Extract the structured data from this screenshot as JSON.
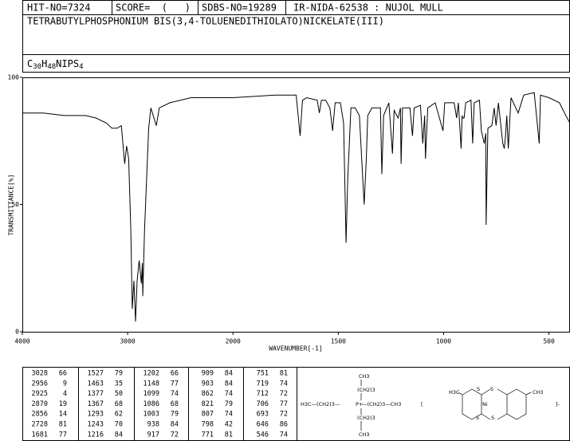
{
  "header": {
    "hit_no": "HIT-NO=7324",
    "score": "SCORE=  (   )",
    "sdbs_no": "SDBS-NO=19289",
    "ir_no": "IR-NIDA-62538 : NUJOL MULL",
    "compound": "TETRABUTYLPHOSPHONIUM BIS(3,4-TOLUENEDITHIOLATO)NICKELATE(III)",
    "formula": [
      {
        "text": "C",
        "sub": false
      },
      {
        "text": "30",
        "sub": true
      },
      {
        "text": "H",
        "sub": false
      },
      {
        "text": "48",
        "sub": true
      },
      {
        "text": "NIPS",
        "sub": false
      },
      {
        "text": "4",
        "sub": true
      }
    ]
  },
  "chart_data": {
    "type": "line",
    "xlabel": "WAVENUMBER[-1]",
    "ylabel": "TRANSMITTANCE[%]",
    "xlim": [
      4000,
      400
    ],
    "x_scale_change": 2000,
    "xticks": [
      4000,
      3000,
      2000,
      1500,
      1000,
      500
    ],
    "ylim": [
      0,
      100
    ],
    "yticks": [
      0,
      50,
      100
    ],
    "series": [
      {
        "name": "spectrum",
        "color": "#000000",
        "x": [
          4000,
          3800,
          3600,
          3400,
          3300,
          3200,
          3150,
          3100,
          3060,
          3028,
          3010,
          2990,
          2970,
          2956,
          2940,
          2925,
          2910,
          2890,
          2870,
          2860,
          2856,
          2840,
          2800,
          2780,
          2728,
          2700,
          2600,
          2400,
          2200,
          2000,
          1800,
          1700,
          1681,
          1670,
          1650,
          1600,
          1590,
          1580,
          1560,
          1540,
          1527,
          1515,
          1490,
          1475,
          1463,
          1455,
          1440,
          1420,
          1400,
          1377,
          1367,
          1360,
          1340,
          1300,
          1293,
          1285,
          1260,
          1243,
          1235,
          1216,
          1205,
          1202,
          1195,
          1160,
          1148,
          1140,
          1110,
          1099,
          1090,
          1086,
          1075,
          1040,
          1003,
          995,
          950,
          938,
          930,
          917,
          912,
          909,
          903,
          895,
          870,
          862,
          855,
          830,
          821,
          810,
          807,
          800,
          798,
          790,
          771,
          760,
          751,
          740,
          719,
          712,
          706,
          700,
          693,
          680,
          646,
          620,
          570,
          546,
          540,
          500,
          450,
          420,
          400
        ],
        "values": [
          86,
          86,
          85,
          85,
          84,
          82,
          80,
          80,
          81,
          66,
          73,
          68,
          40,
          9,
          20,
          4,
          20,
          28,
          19,
          27,
          14,
          40,
          80,
          88,
          81,
          88,
          90,
          92,
          92,
          92,
          93,
          93,
          77,
          91,
          92,
          91,
          86,
          91,
          91,
          88,
          79,
          90,
          90,
          82,
          35,
          60,
          88,
          88,
          85,
          50,
          68,
          85,
          88,
          88,
          62,
          85,
          90,
          70,
          87,
          84,
          88,
          66,
          88,
          88,
          77,
          88,
          89,
          74,
          85,
          68,
          88,
          90,
          79,
          90,
          90,
          84,
          90,
          72,
          85,
          84,
          84,
          90,
          91,
          74,
          90,
          91,
          79,
          75,
          74,
          78,
          42,
          80,
          81,
          88,
          81,
          90,
          74,
          72,
          77,
          85,
          72,
          92,
          86,
          93,
          94,
          74,
          93,
          92,
          90,
          85,
          82
        ]
      }
    ]
  },
  "peak_table": [
    [
      [
        3028,
        66
      ],
      [
        2956,
        9
      ],
      [
        2925,
        4
      ],
      [
        2870,
        19
      ],
      [
        2856,
        14
      ],
      [
        2728,
        81
      ],
      [
        1681,
        77
      ]
    ],
    [
      [
        1527,
        79
      ],
      [
        1463,
        35
      ],
      [
        1377,
        50
      ],
      [
        1367,
        68
      ],
      [
        1293,
        62
      ],
      [
        1243,
        70
      ],
      [
        1216,
        84
      ]
    ],
    [
      [
        1202,
        66
      ],
      [
        1148,
        77
      ],
      [
        1099,
        74
      ],
      [
        1086,
        68
      ],
      [
        1003,
        79
      ],
      [
        938,
        84
      ],
      [
        917,
        72
      ]
    ],
    [
      [
        909,
        84
      ],
      [
        903,
        84
      ],
      [
        862,
        74
      ],
      [
        821,
        79
      ],
      [
        807,
        74
      ],
      [
        798,
        42
      ],
      [
        771,
        81
      ]
    ],
    [
      [
        751,
        81
      ],
      [
        719,
        74
      ],
      [
        712,
        72
      ],
      [
        706,
        77
      ],
      [
        693,
        72
      ],
      [
        646,
        86
      ],
      [
        546,
        74
      ]
    ]
  ],
  "structure": [
    "CH3",
    "(CH2)3",
    "P+",
    "H3C—(CH2)3—",
    "—(CH2)3—CH3",
    "(CH2)3",
    "CH3",
    "[",
    "H3C",
    "S",
    "S",
    "Ni",
    "S",
    "S",
    "CH3",
    "]-"
  ]
}
